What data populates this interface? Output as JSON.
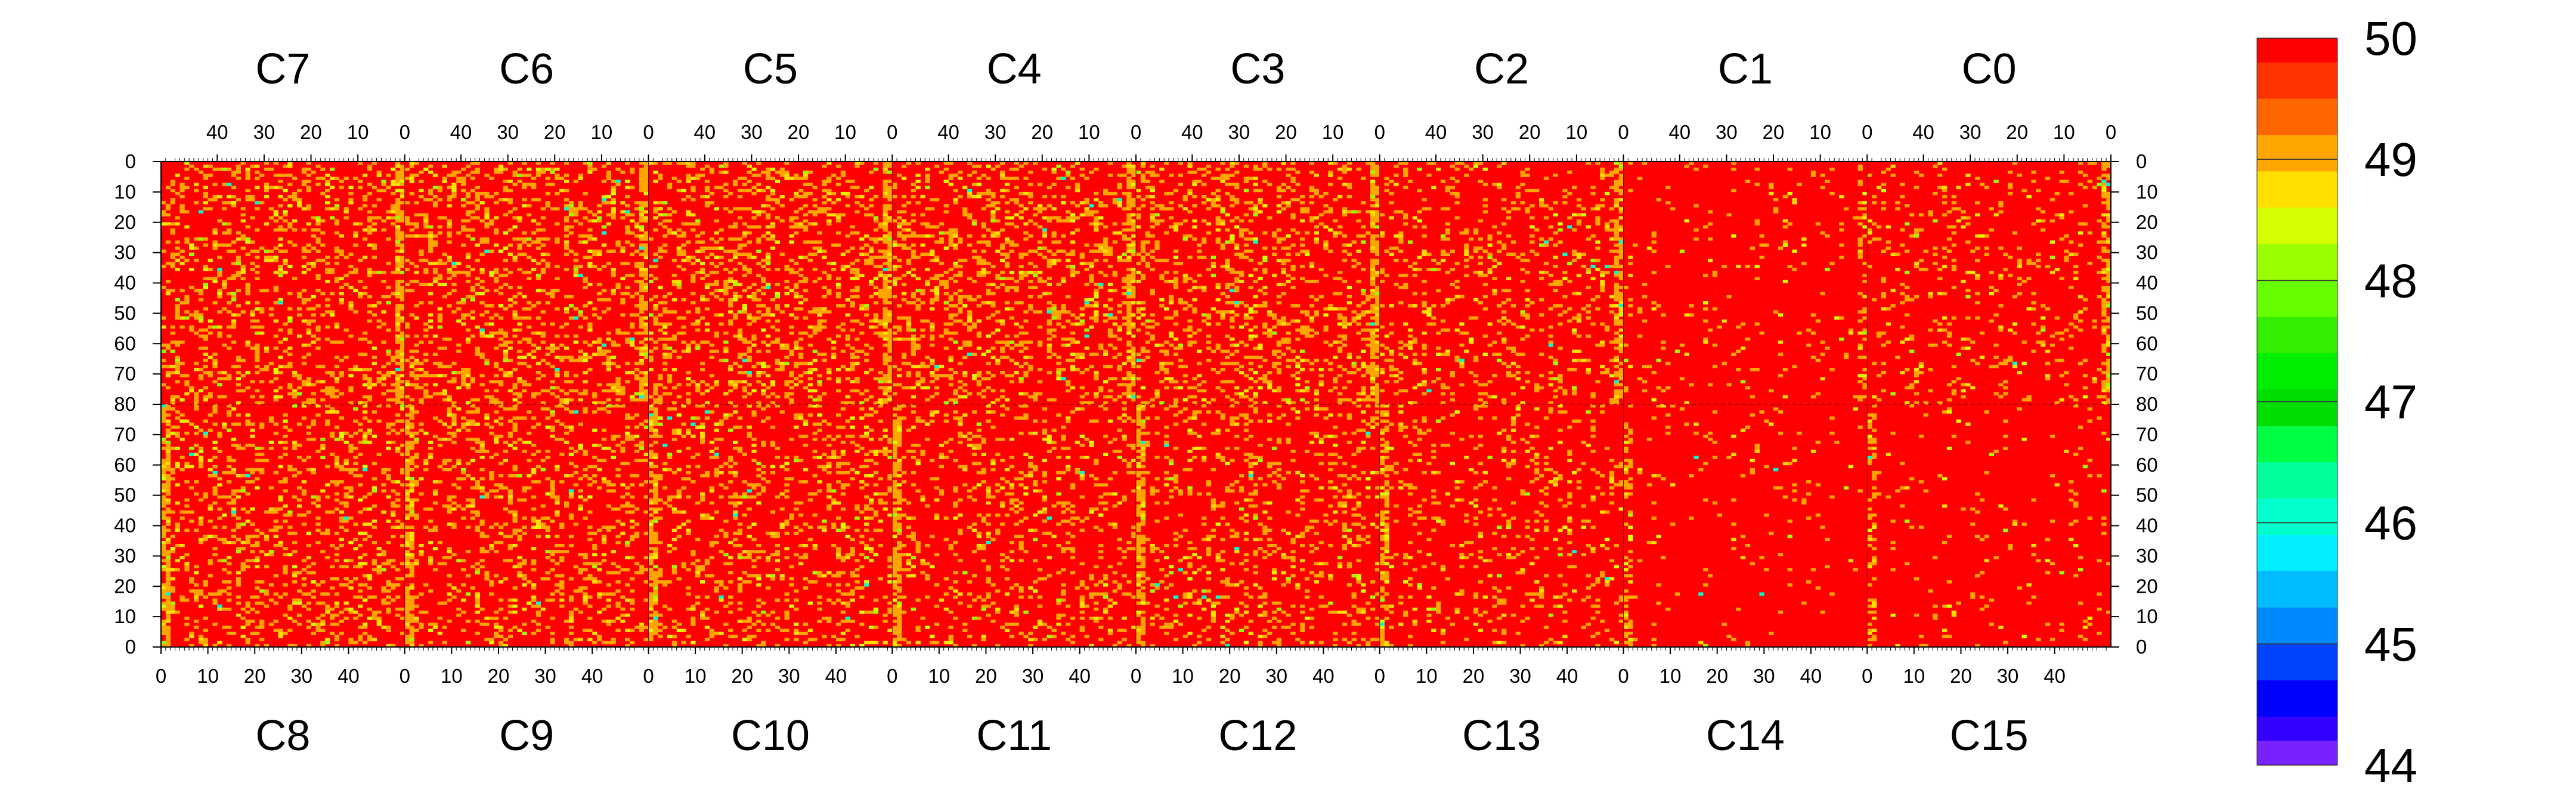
{
  "chart_data": {
    "type": "heatmap",
    "title": "",
    "xlabel": "",
    "ylabel": "",
    "zlim": [
      44,
      50
    ],
    "colorbar": {
      "tick_labels": [
        "50",
        "49",
        "48",
        "47",
        "46",
        "45",
        "44"
      ],
      "tick_values": [
        50,
        49,
        48,
        47,
        46,
        45,
        44
      ],
      "levels": [
        {
          "from": 49.8,
          "to": 50.0,
          "color": "#ff0000"
        },
        {
          "from": 49.5,
          "to": 49.8,
          "color": "#ff3300"
        },
        {
          "from": 49.2,
          "to": 49.5,
          "color": "#ff6600"
        },
        {
          "from": 48.9,
          "to": 49.2,
          "color": "#ffa500"
        },
        {
          "from": 48.6,
          "to": 48.9,
          "color": "#ffe000"
        },
        {
          "from": 48.3,
          "to": 48.6,
          "color": "#d4ff00"
        },
        {
          "from": 48.0,
          "to": 48.3,
          "color": "#99ff00"
        },
        {
          "from": 47.7,
          "to": 48.0,
          "color": "#66ff00"
        },
        {
          "from": 47.4,
          "to": 47.7,
          "color": "#33ee00"
        },
        {
          "from": 47.1,
          "to": 47.4,
          "color": "#00ee00"
        },
        {
          "from": 46.8,
          "to": 47.1,
          "color": "#00dd00"
        },
        {
          "from": 46.5,
          "to": 46.8,
          "color": "#00ff44"
        },
        {
          "from": 46.2,
          "to": 46.5,
          "color": "#00ff99"
        },
        {
          "from": 45.9,
          "to": 46.2,
          "color": "#00ffcc"
        },
        {
          "from": 45.6,
          "to": 45.9,
          "color": "#00eeff"
        },
        {
          "from": 45.3,
          "to": 45.6,
          "color": "#00bbff"
        },
        {
          "from": 45.0,
          "to": 45.3,
          "color": "#0088ff"
        },
        {
          "from": 44.7,
          "to": 45.0,
          "color": "#0044ff"
        },
        {
          "from": 44.4,
          "to": 44.7,
          "color": "#0000ff"
        },
        {
          "from": 44.2,
          "to": 44.4,
          "color": "#3300ff"
        },
        {
          "from": 44.0,
          "to": 44.2,
          "color": "#7722ff"
        }
      ]
    },
    "top_chips": [
      "C7",
      "C6",
      "C5",
      "C4",
      "C3",
      "C2",
      "C1",
      "C0"
    ],
    "bottom_chips": [
      "C8",
      "C9",
      "C10",
      "C11",
      "C12",
      "C13",
      "C14",
      "C15"
    ],
    "top_axis_ticks": [
      "40",
      "30",
      "20",
      "10",
      "0"
    ],
    "bottom_axis_ticks": [
      "0",
      "10",
      "20",
      "30",
      "40"
    ],
    "y_axis_ticks": [
      "0",
      "10",
      "20",
      "30",
      "40",
      "50",
      "60",
      "70",
      "80",
      "70",
      "60",
      "50",
      "40",
      "30",
      "20",
      "10",
      "0"
    ],
    "columns_per_chip": 52,
    "rows_per_half": 80,
    "background_value": 50,
    "chip_pixel_density": {
      "C7": 0.22,
      "C6": 0.24,
      "C5": 0.24,
      "C4": 0.24,
      "C3": 0.22,
      "C2": 0.15,
      "C1": 0.05,
      "C0": 0.1,
      "C8": 0.2,
      "C9": 0.2,
      "C10": 0.18,
      "C11": 0.16,
      "C12": 0.16,
      "C13": 0.12,
      "C14": 0.03,
      "C15": 0.04
    },
    "hot_column_edge": 50
  }
}
